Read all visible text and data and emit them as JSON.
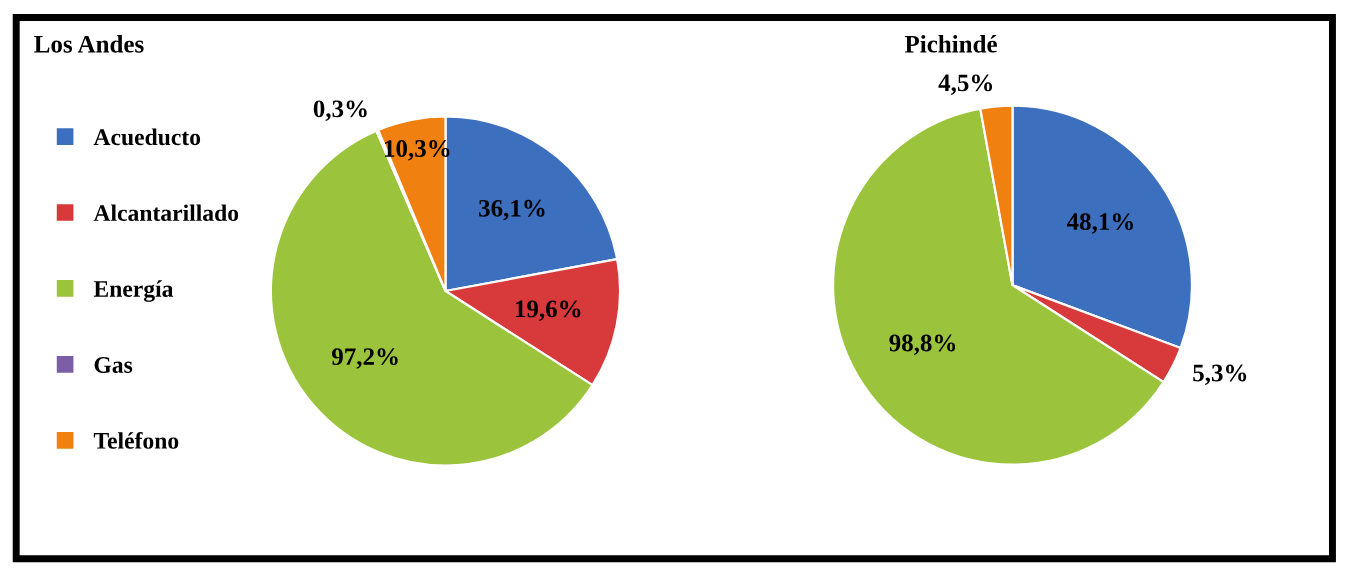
{
  "chart_data": [
    {
      "type": "pie",
      "title": "Los Andes",
      "categories": [
        "Acueducto",
        "Alcantarillado",
        "Energía",
        "Gas",
        "Teléfono"
      ],
      "values": [
        36.1,
        19.6,
        97.2,
        0.3,
        10.3
      ],
      "colors": [
        "#3d6fbf",
        "#d8393b",
        "#9bc43c",
        "#7b5ea6",
        "#f08010"
      ],
      "value_labels": [
        "36,1%",
        "19,6%",
        "97,2%",
        "0,3%",
        "10,3%"
      ],
      "legend": "left"
    },
    {
      "type": "pie",
      "title": "Pichindé",
      "categories": [
        null,
        null,
        null,
        null
      ],
      "values": [
        48.1,
        5.3,
        98.8,
        4.5
      ],
      "colors": [
        "#3d6fbf",
        "#d8393b",
        "#9bc43c",
        "#f08010"
      ],
      "value_labels": [
        "48,1%",
        "5,3%",
        "98,8%",
        "4,5%"
      ]
    }
  ]
}
